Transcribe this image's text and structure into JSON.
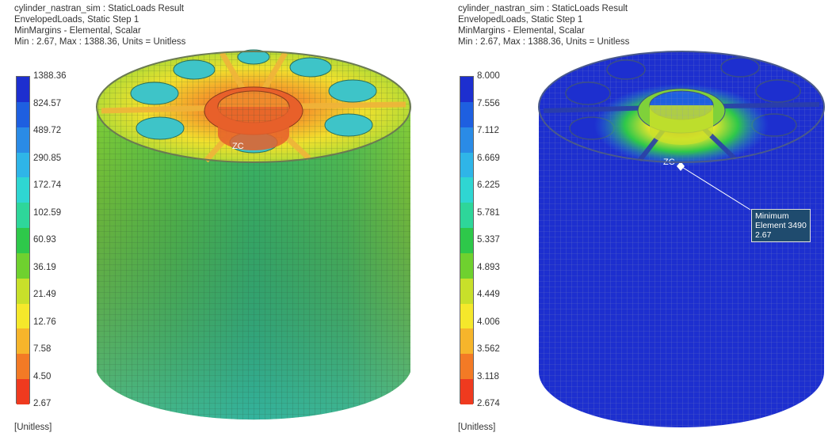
{
  "left": {
    "header": {
      "line1": "cylinder_nastran_sim : StaticLoads Result",
      "line2": "EnvelopedLoads, Static Step 1",
      "line3": "MinMargins - Elemental, Scalar",
      "line4": "Min : 2.67, Max : 1388.36, Units = Unitless"
    },
    "legend": [
      "1388.36",
      "824.57",
      "489.72",
      "290.85",
      "172.74",
      "102.59",
      "60.93",
      "36.19",
      "21.49",
      "12.76",
      "7.58",
      "4.50",
      "2.67"
    ],
    "units": "[Unitless]"
  },
  "right": {
    "header": {
      "line1": "cylinder_nastran_sim : StaticLoads Result",
      "line2": "EnvelopedLoads, Static Step 1",
      "line3": "MinMargins - Elemental, Scalar",
      "line4": "Min : 2.67, Max : 1388.36, Units = Unitless"
    },
    "legend": [
      "8.000",
      "7.556",
      "7.112",
      "6.669",
      "6.225",
      "5.781",
      "5.337",
      "4.893",
      "4.449",
      "4.006",
      "3.562",
      "3.118",
      "2.674"
    ],
    "units": "[Unitless]",
    "tooltip": {
      "line1": "Minimum",
      "line2": "Element 3490",
      "line3": "2.67"
    }
  },
  "axis_label": "ZC",
  "colors": {
    "scale": [
      "#1d2fcf",
      "#1e5fe0",
      "#2a8be6",
      "#2fb5e8",
      "#2fd6d2",
      "#2ed69a",
      "#2ec84a",
      "#6fd12f",
      "#c8e02a",
      "#f5e82b",
      "#f6b52b",
      "#f37a25",
      "#ef3a1f"
    ]
  }
}
